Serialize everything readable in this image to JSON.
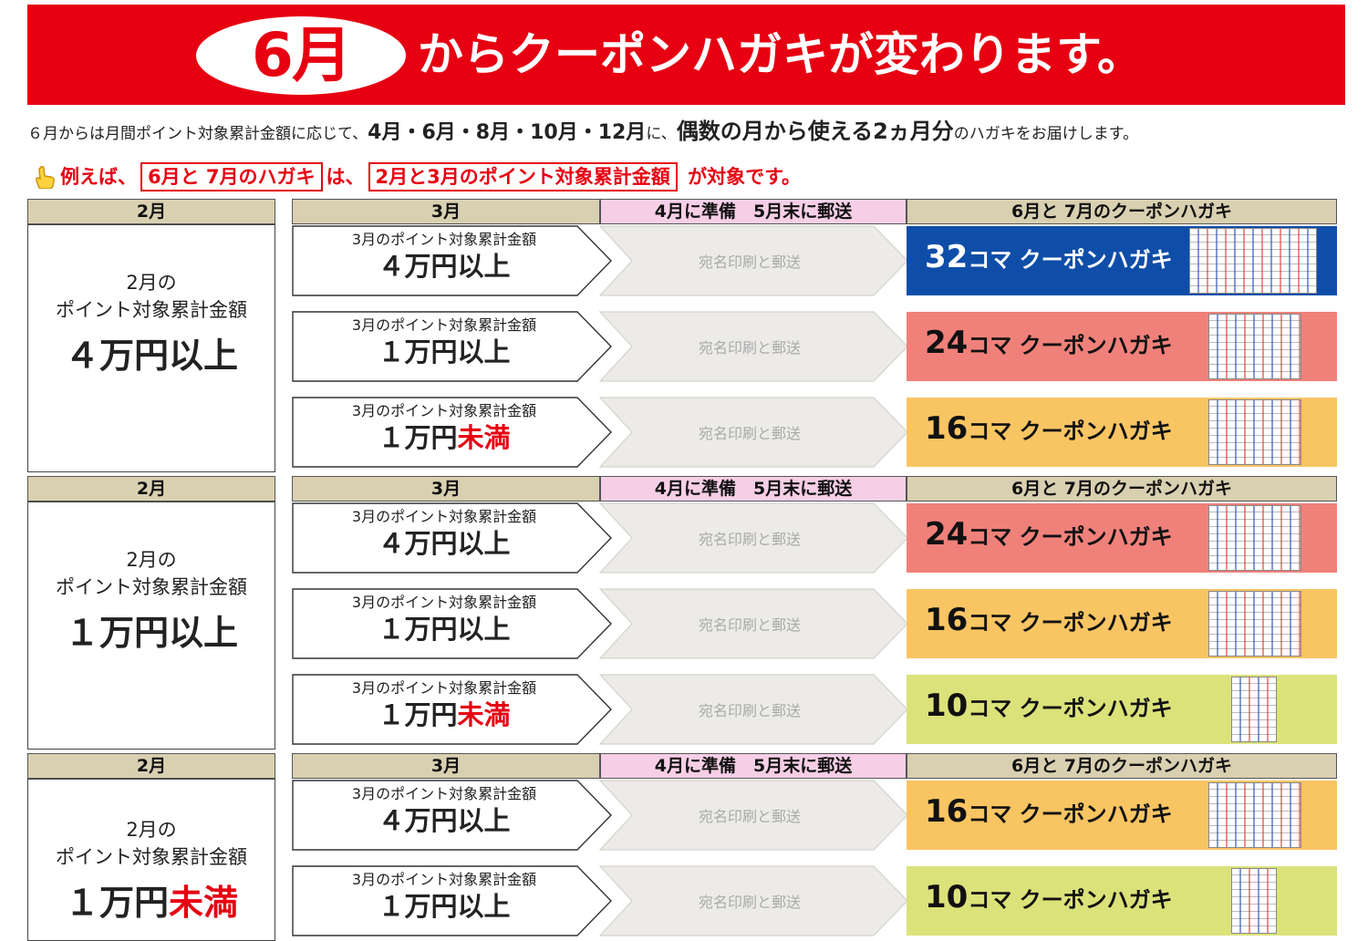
{
  "banner": {
    "month": "6月",
    "title": "からクーポンハガキが変わります。"
  },
  "intro": {
    "p1": "６月からは月間ポイント対象累計金額に応じて、",
    "months": "4月・6月・8月・10月・12月",
    "p2": "に、",
    "emph": "偶数の月から使える",
    "months_count": "2ヵ月分",
    "p3": "のハガキをお届けします。"
  },
  "example": {
    "lead": "例えば、",
    "box1": "6月と 7月のハガキ",
    "mid": "は、",
    "box2": "2月と3月のポイント対象累計金額",
    "tail": "が対象です。"
  },
  "headers": {
    "feb": "2月",
    "mar": "3月",
    "process": "4月に準備　5月末に郵送",
    "coupon": "6月と 7月のクーポンハガキ"
  },
  "common": {
    "feb_label_1": "2月の",
    "feb_label_2": "ポイント対象累計金額",
    "row_small": "3月のポイント対象累計金額",
    "process_text": "宛名印刷と郵送",
    "coupon_suffix": "コマ クーポンハガキ"
  },
  "groups": [
    {
      "feb_amount": "４万円",
      "feb_suffix": "以上",
      "rows": [
        {
          "amount": "４万円",
          "suffix": "以上",
          "coupon_num": "32",
          "coupon_color": "#0f4ea8"
        },
        {
          "amount": "１万円",
          "suffix": "以上",
          "coupon_num": "24",
          "coupon_color": "#f0817a"
        },
        {
          "amount": "１万円",
          "suffix": "未満",
          "coupon_num": "16",
          "coupon_color": "#f9c563"
        }
      ]
    },
    {
      "feb_amount": "１万円",
      "feb_suffix": "以上",
      "rows": [
        {
          "amount": "４万円",
          "suffix": "以上",
          "coupon_num": "24",
          "coupon_color": "#f0817a"
        },
        {
          "amount": "１万円",
          "suffix": "以上",
          "coupon_num": "16",
          "coupon_color": "#f9c563"
        },
        {
          "amount": "１万円",
          "suffix": "未満",
          "coupon_num": "10",
          "coupon_color": "#dbe27a"
        }
      ]
    },
    {
      "feb_amount": "１万円",
      "feb_suffix": "未満",
      "rows": [
        {
          "amount": "４万円",
          "suffix": "以上",
          "coupon_num": "16",
          "coupon_color": "#f9c563"
        },
        {
          "amount": "１万円",
          "suffix": "以上",
          "coupon_num": "10",
          "coupon_color": "#dbe27a"
        }
      ]
    }
  ],
  "icons": {
    "hand": "pointing-hand-icon",
    "thumbnail": "coupon-postcard-thumbnail"
  }
}
